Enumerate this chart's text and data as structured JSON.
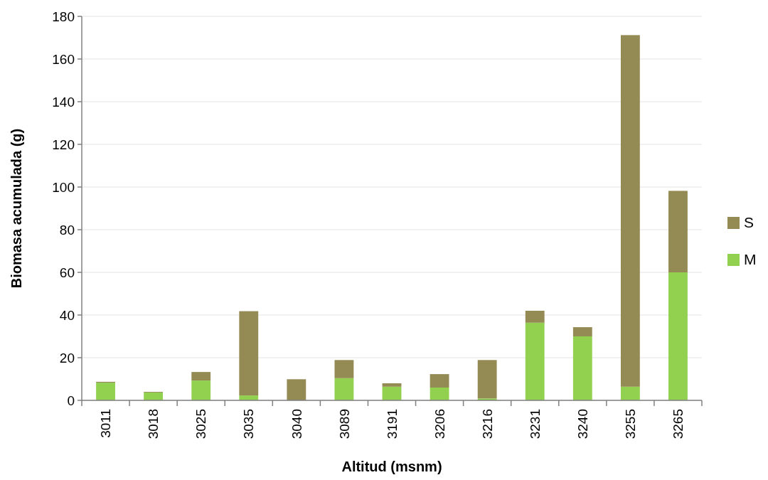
{
  "chart_data": {
    "type": "bar",
    "stacked": true,
    "xlabel": "Altitud (msnm)",
    "ylabel": "Biomasa acumulada (g)",
    "categories": [
      "3011",
      "3018",
      "3025",
      "3035",
      "3040",
      "3089",
      "3191",
      "3206",
      "3216",
      "3231",
      "3240",
      "3255",
      "3265"
    ],
    "series": [
      {
        "name": "M",
        "color": "#92d050",
        "values": [
          8.3,
          3.7,
          9.3,
          2.3,
          null,
          10.4,
          6.4,
          6.0,
          0.9,
          36.4,
          30,
          6.4,
          60
        ]
      },
      {
        "name": "S",
        "color": "#948a54",
        "values": [
          0.4,
          0.3,
          4,
          39.5,
          9.9,
          8.5,
          1.6,
          6.3,
          18,
          5.6,
          4.3,
          164.8,
          38.2
        ]
      }
    ],
    "ylim": [
      0,
      180
    ],
    "yticks": [
      0,
      20,
      40,
      60,
      80,
      100,
      120,
      140,
      160,
      180
    ],
    "grid": "y",
    "legend": "right"
  }
}
